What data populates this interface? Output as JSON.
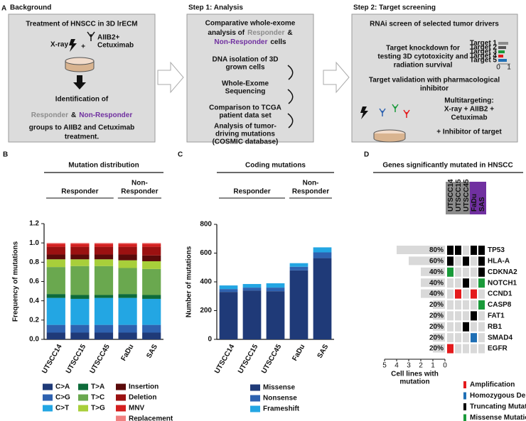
{
  "panel_labels": [
    "A",
    "B",
    "C",
    "D"
  ],
  "panel_a": {
    "responder_color": "#8c8c8c",
    "non_responder_color": "#7030a0",
    "boxes": [
      {
        "heading": "Background",
        "title": "Treatment of HNSCC in 3D lrECM",
        "xray": "X-ray",
        "plus": "+",
        "drug": [
          "AIIB2+",
          "Cetuximab"
        ],
        "identification": "Identification of",
        "groups": [
          "Responder",
          "&",
          "Non-Responder"
        ],
        "footer": [
          "groups to AIIB2 and Cetuximab",
          "treatment."
        ]
      },
      {
        "heading": "Step 1: Analysis",
        "title": [
          "Comparative whole-exome",
          "analysis of",
          "Responder",
          "&",
          "Non-Responder",
          "cells"
        ],
        "steps": [
          [
            "DNA isolation of 3D",
            "grown cells"
          ],
          [
            "Whole-Exome",
            "Sequencing"
          ],
          [
            "Comparison to TCGA",
            "patient data set"
          ],
          [
            "Analysis of tumor-",
            "driving mutations",
            "(COSMIC database)"
          ]
        ]
      },
      {
        "heading": "Step 2: Target screening",
        "title": "RNAi screen of selected tumor drivers",
        "knockdown": [
          "Target knockdown for",
          "testing 3D cytotoxicity and",
          "radiation survival"
        ],
        "targets": [
          "Target 1",
          "Target 2",
          "Target 3",
          "Target 4",
          "Target 5"
        ],
        "target_axis": [
          "0",
          "1"
        ],
        "validation": [
          "Target validation with pharmacological",
          "inhibitor"
        ],
        "multi": [
          "Multitargeting:",
          "X-ray + AIIB2 +",
          "Cetuximab"
        ],
        "inhibitor": "+ Inhibitor of target"
      }
    ]
  },
  "chart_data": [
    {
      "type": "bar",
      "stacked": true,
      "title": "Mutation distribution",
      "groups": [
        {
          "label": [
            "Responder"
          ],
          "color": "#8c8c8c"
        },
        {
          "label": [
            "Non-",
            "Responder"
          ],
          "color": "#7030a0"
        }
      ],
      "y_label": "Frequency of mutations",
      "categories": [
        "UTSCC14",
        "UTSCC15",
        "UTSCC45",
        "FaDu",
        "SAS"
      ],
      "ylim": [
        0,
        1.2
      ],
      "yticks": [
        {
          "value": 0,
          "label": "0.0"
        },
        0.2,
        0.4,
        0.6,
        0.8,
        {
          "value": 1,
          "label": "1.0"
        },
        1.2
      ],
      "series": [
        {
          "name": "C>A",
          "color": "#1f3a78",
          "values": [
            0.07,
            0.07,
            0.07,
            0.07,
            0.07
          ]
        },
        {
          "name": "C>G",
          "color": "#2e62b0",
          "values": [
            0.08,
            0.08,
            0.08,
            0.08,
            0.08
          ]
        },
        {
          "name": "C>T",
          "color": "#23a6e3",
          "values": [
            0.28,
            0.27,
            0.28,
            0.28,
            0.27
          ]
        },
        {
          "name": "T>A",
          "color": "#0d6b3a",
          "values": [
            0.04,
            0.04,
            0.03,
            0.04,
            0.04
          ]
        },
        {
          "name": "T>C",
          "color": "#6aa84f",
          "values": [
            0.28,
            0.3,
            0.3,
            0.27,
            0.27
          ]
        },
        {
          "name": "T>G",
          "color": "#a8cf3a",
          "values": [
            0.08,
            0.07,
            0.07,
            0.08,
            0.08
          ]
        },
        {
          "name": "Insertion",
          "color": "#5a0a0a",
          "values": [
            0.05,
            0.05,
            0.05,
            0.06,
            0.06
          ]
        },
        {
          "name": "Deletion",
          "color": "#9b1111",
          "values": [
            0.08,
            0.08,
            0.08,
            0.08,
            0.09
          ]
        },
        {
          "name": "MNV",
          "color": "#d42020",
          "values": [
            0.03,
            0.03,
            0.03,
            0.03,
            0.03
          ]
        },
        {
          "name": "Replacement",
          "color": "#f08080",
          "values": [
            0.01,
            0.01,
            0.01,
            0.01,
            0.01
          ]
        }
      ]
    },
    {
      "type": "bar",
      "stacked": true,
      "title": "Coding mutations",
      "groups": [
        {
          "label": [
            "Responder"
          ],
          "color": "#8c8c8c"
        },
        {
          "label": [
            "Non-",
            "Responder"
          ],
          "color": "#7030a0"
        }
      ],
      "y_label": "Number of mutations",
      "categories": [
        "UTSCC14",
        "UTSCC15",
        "UTSCC45",
        "FaDu",
        "SAS"
      ],
      "ylim": [
        0,
        800
      ],
      "yticks": [
        0,
        200,
        400,
        600,
        800
      ],
      "series": [
        {
          "name": "Missense",
          "color": "#1f3a78",
          "values": [
            330,
            340,
            335,
            480,
            565
          ]
        },
        {
          "name": "Nonsense",
          "color": "#2e62b0",
          "values": [
            20,
            20,
            25,
            25,
            40
          ]
        },
        {
          "name": "Frameshift",
          "color": "#23a6e3",
          "values": [
            25,
            25,
            30,
            25,
            35
          ]
        }
      ]
    }
  ],
  "panel_d": {
    "title": "Genes significantly mutated in HNSCC",
    "columns": [
      "UTSCC14",
      "UTSCC15",
      "UTSCC45",
      "FaDu",
      "SAS"
    ],
    "header_colors": [
      "#8c8c8c",
      "#7030a0"
    ],
    "xlim": [
      0,
      5
    ],
    "xticks": [
      5,
      4,
      3,
      2,
      1,
      0
    ],
    "x_label": [
      "Cell lines with",
      "mutation"
    ],
    "legend": [
      {
        "name": "Amplification",
        "color": "#e41a1c"
      },
      {
        "name": "Homozygous Deletion",
        "color": "#1f6fb5"
      },
      {
        "name": "Truncating Mutation",
        "color": "#000000"
      },
      {
        "name": "Missense Mutation",
        "color": "#1a9a3a"
      }
    ],
    "genes": [
      {
        "name": "TP53",
        "percent": "80%",
        "count": 4,
        "cells": [
          2,
          2,
          null,
          2,
          2
        ]
      },
      {
        "name": "HLA-A",
        "percent": "60%",
        "count": 3,
        "cells": [
          2,
          null,
          2,
          null,
          2
        ]
      },
      {
        "name": "CDKNA2",
        "percent": "40%",
        "count": 2,
        "cells": [
          3,
          null,
          null,
          null,
          2
        ]
      },
      {
        "name": "NOTCH1",
        "percent": "40%",
        "count": 2,
        "cells": [
          null,
          null,
          2,
          null,
          3
        ]
      },
      {
        "name": "CCND1",
        "percent": "40%",
        "count": 2,
        "cells": [
          null,
          0,
          null,
          0,
          null
        ]
      },
      {
        "name": "CASP8",
        "percent": "20%",
        "count": 1,
        "cells": [
          null,
          null,
          null,
          null,
          3
        ]
      },
      {
        "name": "FAT1",
        "percent": "20%",
        "count": 1,
        "cells": [
          null,
          null,
          null,
          2,
          null
        ]
      },
      {
        "name": "RB1",
        "percent": "20%",
        "count": 1,
        "cells": [
          null,
          null,
          2,
          null,
          null
        ]
      },
      {
        "name": "SMAD4",
        "percent": "20%",
        "count": 1,
        "cells": [
          null,
          null,
          null,
          1,
          null
        ]
      },
      {
        "name": "EGFR",
        "percent": "20%",
        "count": 1,
        "cells": [
          0,
          null,
          null,
          null,
          null
        ]
      }
    ]
  }
}
